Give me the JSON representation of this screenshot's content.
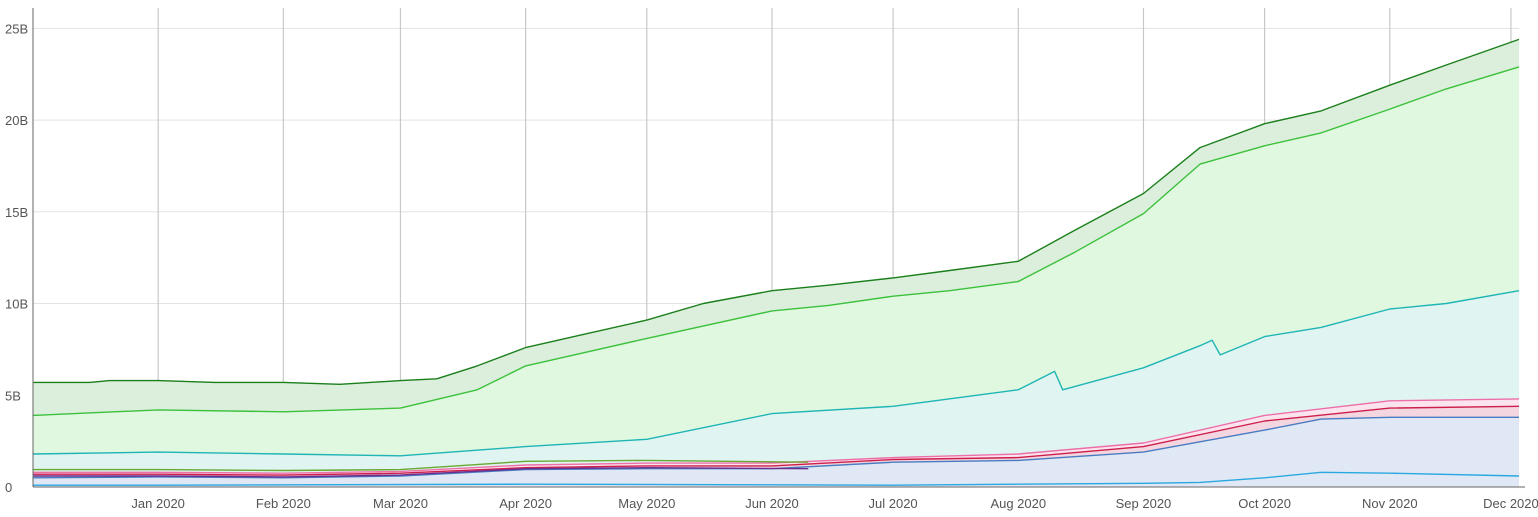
{
  "chart_data": {
    "type": "area",
    "title": "",
    "xlabel": "",
    "ylabel": "",
    "x_start": "2019-12-01",
    "x_end": "2020-12-03",
    "xlim": [
      "2019-12-01",
      "2020-12-03"
    ],
    "ylim": [
      0,
      26000000000
    ],
    "grid": true,
    "legend": "none",
    "x_tick_labels": [
      {
        "date": "2020-01-01",
        "label": "Jan 2020"
      },
      {
        "date": "2020-02-01",
        "label": "Feb 2020"
      },
      {
        "date": "2020-03-01",
        "label": "Mar 2020"
      },
      {
        "date": "2020-04-01",
        "label": "Apr 2020"
      },
      {
        "date": "2020-05-01",
        "label": "May 2020"
      },
      {
        "date": "2020-06-01",
        "label": "Jun 2020"
      },
      {
        "date": "2020-07-01",
        "label": "Jul 2020"
      },
      {
        "date": "2020-08-01",
        "label": "Aug 2020"
      },
      {
        "date": "2020-09-01",
        "label": "Sep 2020"
      },
      {
        "date": "2020-10-01",
        "label": "Oct 2020"
      },
      {
        "date": "2020-11-01",
        "label": "Nov 2020"
      },
      {
        "date": "2020-12-01",
        "label": "Dec 2020"
      }
    ],
    "y_tick_labels": [
      {
        "value": 0,
        "label": "0"
      },
      {
        "value": 5000000000,
        "label": "5B"
      },
      {
        "value": 10000000000,
        "label": "10B"
      },
      {
        "value": 15000000000,
        "label": "15B"
      },
      {
        "value": 20000000000,
        "label": "20B"
      },
      {
        "value": 25000000000,
        "label": "25B"
      }
    ],
    "series": [
      {
        "line_color": "#1b7f1b",
        "fill_color": "#dcefdc",
        "points": [
          [
            "2019-12-01",
            5700000000.0
          ],
          [
            "2019-12-15",
            5700000000.0
          ],
          [
            "2019-12-20",
            5800000000.0
          ],
          [
            "2020-01-01",
            5800000000.0
          ],
          [
            "2020-01-15",
            5700000000.0
          ],
          [
            "2020-02-01",
            5700000000.0
          ],
          [
            "2020-02-15",
            5600000000.0
          ],
          [
            "2020-03-01",
            5800000000.0
          ],
          [
            "2020-03-10",
            5900000000.0
          ],
          [
            "2020-03-20",
            6600000000.0
          ],
          [
            "2020-04-01",
            7600000000.0
          ],
          [
            "2020-04-15",
            8300000000.0
          ],
          [
            "2020-05-01",
            9100000000.0
          ],
          [
            "2020-05-15",
            10000000000.0
          ],
          [
            "2020-06-01",
            10700000000.0
          ],
          [
            "2020-06-15",
            11000000000.0
          ],
          [
            "2020-07-01",
            11400000000.0
          ],
          [
            "2020-07-15",
            11800000000.0
          ],
          [
            "2020-08-01",
            12300000000.0
          ],
          [
            "2020-08-15",
            14000000000.0
          ],
          [
            "2020-09-01",
            16000000000.0
          ],
          [
            "2020-09-15",
            18500000000.0
          ],
          [
            "2020-10-01",
            19800000000.0
          ],
          [
            "2020-10-15",
            20500000000.0
          ],
          [
            "2020-11-01",
            21900000000.0
          ],
          [
            "2020-11-15",
            23000000000.0
          ],
          [
            "2020-12-03",
            24400000000.0
          ]
        ]
      },
      {
        "line_color": "#3cc13c",
        "fill_color": "#e0f7e0",
        "points": [
          [
            "2019-12-01",
            3900000000.0
          ],
          [
            "2020-01-01",
            4200000000.0
          ],
          [
            "2020-02-01",
            4100000000.0
          ],
          [
            "2020-03-01",
            4300000000.0
          ],
          [
            "2020-03-20",
            5300000000.0
          ],
          [
            "2020-04-01",
            6600000000.0
          ],
          [
            "2020-05-01",
            8100000000.0
          ],
          [
            "2020-06-01",
            9600000000.0
          ],
          [
            "2020-06-15",
            9900000000.0
          ],
          [
            "2020-07-01",
            10400000000.0
          ],
          [
            "2020-07-15",
            10700000000.0
          ],
          [
            "2020-08-01",
            11200000000.0
          ],
          [
            "2020-08-15",
            12800000000.0
          ],
          [
            "2020-09-01",
            14900000000.0
          ],
          [
            "2020-09-15",
            17600000000.0
          ],
          [
            "2020-10-01",
            18600000000.0
          ],
          [
            "2020-10-15",
            19300000000.0
          ],
          [
            "2020-11-01",
            20600000000.0
          ],
          [
            "2020-11-15",
            21700000000.0
          ],
          [
            "2020-12-03",
            22900000000.0
          ]
        ]
      },
      {
        "line_color": "#1fb5b5",
        "fill_color": "#e0f4f2",
        "points": [
          [
            "2019-12-01",
            1800000000.0
          ],
          [
            "2020-01-01",
            1900000000.0
          ],
          [
            "2020-02-01",
            1800000000.0
          ],
          [
            "2020-03-01",
            1700000000.0
          ],
          [
            "2020-04-01",
            2200000000.0
          ],
          [
            "2020-05-01",
            2600000000.0
          ],
          [
            "2020-06-01",
            4000000000.0
          ],
          [
            "2020-07-01",
            4400000000.0
          ],
          [
            "2020-08-01",
            5300000000.0
          ],
          [
            "2020-08-10",
            6300000000.0
          ],
          [
            "2020-08-12",
            5300000000.0
          ],
          [
            "2020-09-01",
            6500000000.0
          ],
          [
            "2020-09-15",
            7700000000.0
          ],
          [
            "2020-09-18",
            8000000000.0
          ],
          [
            "2020-09-20",
            7200000000.0
          ],
          [
            "2020-10-01",
            8200000000.0
          ],
          [
            "2020-10-15",
            8700000000.0
          ],
          [
            "2020-11-01",
            9700000000.0
          ],
          [
            "2020-11-15",
            10000000000.0
          ],
          [
            "2020-12-03",
            10700000000.0
          ]
        ]
      },
      {
        "line_color": "#ec6fa8",
        "fill_color": "#fce4ef",
        "points": [
          [
            "2019-12-01",
            800000000.0
          ],
          [
            "2020-01-01",
            800000000.0
          ],
          [
            "2020-02-01",
            750000000.0
          ],
          [
            "2020-03-01",
            850000000.0
          ],
          [
            "2020-04-01",
            1200000000.0
          ],
          [
            "2020-05-01",
            1300000000.0
          ],
          [
            "2020-06-01",
            1300000000.0
          ],
          [
            "2020-07-01",
            1600000000.0
          ],
          [
            "2020-08-01",
            1800000000.0
          ],
          [
            "2020-09-01",
            2400000000.0
          ],
          [
            "2020-10-01",
            3900000000.0
          ],
          [
            "2020-11-01",
            4700000000.0
          ],
          [
            "2020-12-03",
            4800000000.0
          ]
        ]
      },
      {
        "line_color": "#cc1f4c",
        "fill_color": "#f3d6e0",
        "points": [
          [
            "2019-12-01",
            700000000.0
          ],
          [
            "2020-01-01",
            700000000.0
          ],
          [
            "2020-02-01",
            650000000.0
          ],
          [
            "2020-03-01",
            750000000.0
          ],
          [
            "2020-04-01",
            1050000000.0
          ],
          [
            "2020-05-01",
            1150000000.0
          ],
          [
            "2020-06-01",
            1150000000.0
          ],
          [
            "2020-07-01",
            1500000000.0
          ],
          [
            "2020-08-01",
            1600000000.0
          ],
          [
            "2020-09-01",
            2200000000.0
          ],
          [
            "2020-10-01",
            3600000000.0
          ],
          [
            "2020-11-01",
            4300000000.0
          ],
          [
            "2020-12-03",
            4400000000.0
          ]
        ]
      },
      {
        "line_color": "#4a7cc2",
        "fill_color": "#e1e8f5",
        "points": [
          [
            "2019-12-01",
            500000000.0
          ],
          [
            "2020-01-01",
            550000000.0
          ],
          [
            "2020-02-01",
            500000000.0
          ],
          [
            "2020-03-01",
            600000000.0
          ],
          [
            "2020-04-01",
            950000000.0
          ],
          [
            "2020-05-01",
            1000000000.0
          ],
          [
            "2020-06-01",
            1000000000.0
          ],
          [
            "2020-07-01",
            1350000000.0
          ],
          [
            "2020-08-01",
            1450000000.0
          ],
          [
            "2020-09-01",
            1900000000.0
          ],
          [
            "2020-10-01",
            3100000000.0
          ],
          [
            "2020-10-15",
            3700000000.0
          ],
          [
            "2020-11-01",
            3800000000.0
          ],
          [
            "2020-12-03",
            3800000000.0
          ]
        ]
      },
      {
        "line_color": "#6aa832",
        "fill_color": "none",
        "points": [
          [
            "2019-12-01",
            950000000.0
          ],
          [
            "2020-01-01",
            950000000.0
          ],
          [
            "2020-02-01",
            900000000.0
          ],
          [
            "2020-03-01",
            950000000.0
          ],
          [
            "2020-04-01",
            1400000000.0
          ],
          [
            "2020-05-01",
            1450000000.0
          ],
          [
            "2020-06-10",
            1350000000.0
          ]
        ]
      },
      {
        "line_color": "#6a2e8f",
        "fill_color": "none",
        "points": [
          [
            "2019-12-01",
            600000000.0
          ],
          [
            "2020-01-01",
            600000000.0
          ],
          [
            "2020-02-01",
            550000000.0
          ],
          [
            "2020-03-01",
            650000000.0
          ],
          [
            "2020-04-01",
            1000000000.0
          ],
          [
            "2020-05-01",
            1050000000.0
          ],
          [
            "2020-06-10",
            1000000000.0
          ]
        ]
      },
      {
        "line_color": "#29a8e0",
        "fill_color": "none",
        "points": [
          [
            "2019-12-01",
            100000000.0
          ],
          [
            "2020-01-01",
            100000000.0
          ],
          [
            "2020-04-01",
            150000000.0
          ],
          [
            "2020-06-01",
            120000000.0
          ],
          [
            "2020-07-01",
            100000000.0
          ],
          [
            "2020-08-01",
            150000000.0
          ],
          [
            "2020-09-01",
            200000000.0
          ],
          [
            "2020-09-15",
            250000000.0
          ],
          [
            "2020-10-01",
            500000000.0
          ],
          [
            "2020-10-15",
            800000000.0
          ],
          [
            "2020-11-01",
            750000000.0
          ],
          [
            "2020-12-03",
            600000000.0
          ]
        ]
      }
    ]
  },
  "colors": {
    "grid_major": "#c8c8c8",
    "grid_minor": "#e3e3e3",
    "axis": "#666666",
    "tick_text": "#555555"
  }
}
